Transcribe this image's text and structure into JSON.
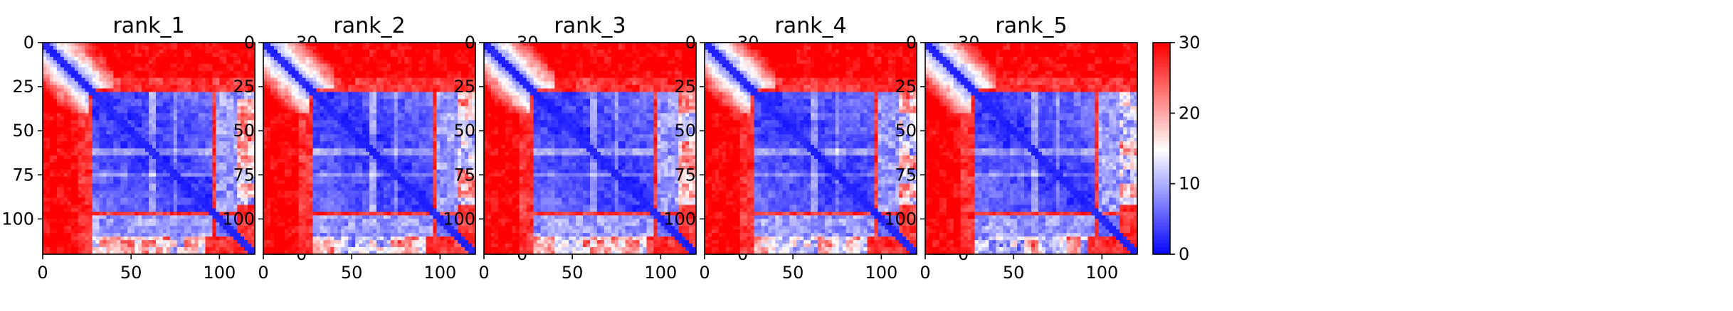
{
  "chart_data": [
    {
      "type": "heatmap",
      "title": "rank_1",
      "xlim": [
        0,
        120
      ],
      "ylim": [
        120,
        0
      ],
      "xticks": [
        "0",
        "50",
        "100"
      ],
      "yticks": [
        "0",
        "25",
        "50",
        "75",
        "100"
      ],
      "colorbar": {
        "min": 0,
        "max": 30,
        "ticks": [
          "0",
          "10",
          "20",
          "30"
        ],
        "colormap": "bwr"
      },
      "grid": false
    },
    {
      "type": "heatmap",
      "title": "rank_2",
      "xlim": [
        0,
        120
      ],
      "ylim": [
        120,
        0
      ],
      "xticks": [
        "0",
        "50",
        "100"
      ],
      "yticks": [
        "0",
        "25",
        "50",
        "75",
        "100"
      ],
      "colorbar": {
        "min": 0,
        "max": 30,
        "ticks": [
          "0",
          "10",
          "20",
          "30"
        ],
        "colormap": "bwr"
      },
      "grid": false
    },
    {
      "type": "heatmap",
      "title": "rank_3",
      "xlim": [
        0,
        120
      ],
      "ylim": [
        120,
        0
      ],
      "xticks": [
        "0",
        "50",
        "100"
      ],
      "yticks": [
        "0",
        "25",
        "50",
        "75",
        "100"
      ],
      "colorbar": {
        "min": 0,
        "max": 30,
        "ticks": [
          "0",
          "10",
          "20",
          "30"
        ],
        "colormap": "bwr"
      },
      "grid": false
    },
    {
      "type": "heatmap",
      "title": "rank_4",
      "xlim": [
        0,
        120
      ],
      "ylim": [
        120,
        0
      ],
      "xticks": [
        "0",
        "50",
        "100"
      ],
      "yticks": [
        "0",
        "25",
        "50",
        "75",
        "100"
      ],
      "colorbar": {
        "min": 0,
        "max": 30,
        "ticks": [
          "0",
          "10",
          "20",
          "30"
        ],
        "colormap": "bwr"
      },
      "grid": false
    },
    {
      "type": "heatmap",
      "title": "rank_5",
      "xlim": [
        0,
        120
      ],
      "ylim": [
        120,
        0
      ],
      "xticks": [
        "0",
        "50",
        "100"
      ],
      "yticks": [
        "0",
        "25",
        "50",
        "75",
        "100"
      ],
      "colorbar": {
        "min": 0,
        "max": 30,
        "ticks": [
          "0",
          "10",
          "20",
          "30"
        ],
        "colormap": "bwr"
      },
      "grid": false
    }
  ]
}
